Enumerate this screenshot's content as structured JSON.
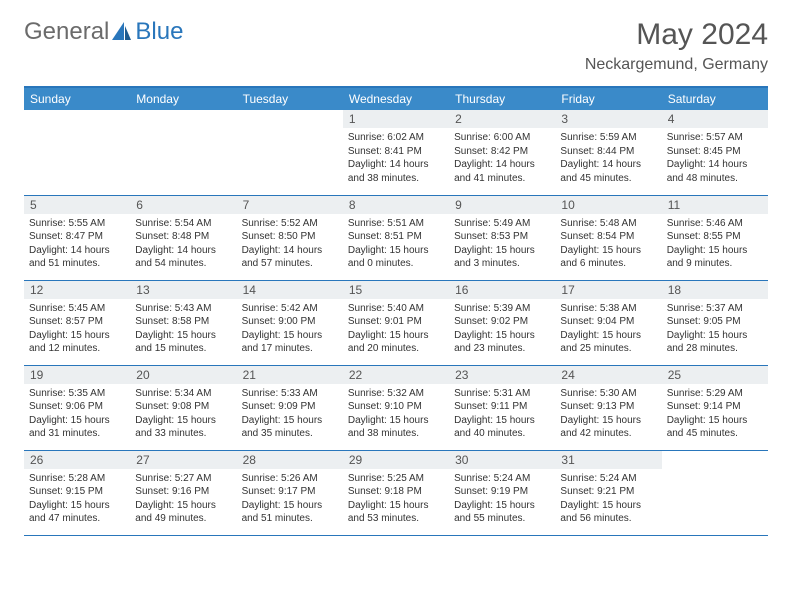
{
  "brand": {
    "name1": "General",
    "name2": "Blue"
  },
  "title": "May 2024",
  "subtitle": "Neckargemund, Germany",
  "colors": {
    "header_bg": "#3a8ac9",
    "border": "#2976bb",
    "daynum_bg": "#eceff1",
    "text": "#333333",
    "title_text": "#555555"
  },
  "weekdays": [
    "Sunday",
    "Monday",
    "Tuesday",
    "Wednesday",
    "Thursday",
    "Friday",
    "Saturday"
  ],
  "weeks": [
    [
      null,
      null,
      null,
      {
        "n": "1",
        "sr": "6:02 AM",
        "ss": "8:41 PM",
        "dh": "14",
        "dm": "38"
      },
      {
        "n": "2",
        "sr": "6:00 AM",
        "ss": "8:42 PM",
        "dh": "14",
        "dm": "41"
      },
      {
        "n": "3",
        "sr": "5:59 AM",
        "ss": "8:44 PM",
        "dh": "14",
        "dm": "45"
      },
      {
        "n": "4",
        "sr": "5:57 AM",
        "ss": "8:45 PM",
        "dh": "14",
        "dm": "48"
      }
    ],
    [
      {
        "n": "5",
        "sr": "5:55 AM",
        "ss": "8:47 PM",
        "dh": "14",
        "dm": "51"
      },
      {
        "n": "6",
        "sr": "5:54 AM",
        "ss": "8:48 PM",
        "dh": "14",
        "dm": "54"
      },
      {
        "n": "7",
        "sr": "5:52 AM",
        "ss": "8:50 PM",
        "dh": "14",
        "dm": "57"
      },
      {
        "n": "8",
        "sr": "5:51 AM",
        "ss": "8:51 PM",
        "dh": "15",
        "dm": "0"
      },
      {
        "n": "9",
        "sr": "5:49 AM",
        "ss": "8:53 PM",
        "dh": "15",
        "dm": "3"
      },
      {
        "n": "10",
        "sr": "5:48 AM",
        "ss": "8:54 PM",
        "dh": "15",
        "dm": "6"
      },
      {
        "n": "11",
        "sr": "5:46 AM",
        "ss": "8:55 PM",
        "dh": "15",
        "dm": "9"
      }
    ],
    [
      {
        "n": "12",
        "sr": "5:45 AM",
        "ss": "8:57 PM",
        "dh": "15",
        "dm": "12"
      },
      {
        "n": "13",
        "sr": "5:43 AM",
        "ss": "8:58 PM",
        "dh": "15",
        "dm": "15"
      },
      {
        "n": "14",
        "sr": "5:42 AM",
        "ss": "9:00 PM",
        "dh": "15",
        "dm": "17"
      },
      {
        "n": "15",
        "sr": "5:40 AM",
        "ss": "9:01 PM",
        "dh": "15",
        "dm": "20"
      },
      {
        "n": "16",
        "sr": "5:39 AM",
        "ss": "9:02 PM",
        "dh": "15",
        "dm": "23"
      },
      {
        "n": "17",
        "sr": "5:38 AM",
        "ss": "9:04 PM",
        "dh": "15",
        "dm": "25"
      },
      {
        "n": "18",
        "sr": "5:37 AM",
        "ss": "9:05 PM",
        "dh": "15",
        "dm": "28"
      }
    ],
    [
      {
        "n": "19",
        "sr": "5:35 AM",
        "ss": "9:06 PM",
        "dh": "15",
        "dm": "31"
      },
      {
        "n": "20",
        "sr": "5:34 AM",
        "ss": "9:08 PM",
        "dh": "15",
        "dm": "33"
      },
      {
        "n": "21",
        "sr": "5:33 AM",
        "ss": "9:09 PM",
        "dh": "15",
        "dm": "35"
      },
      {
        "n": "22",
        "sr": "5:32 AM",
        "ss": "9:10 PM",
        "dh": "15",
        "dm": "38"
      },
      {
        "n": "23",
        "sr": "5:31 AM",
        "ss": "9:11 PM",
        "dh": "15",
        "dm": "40"
      },
      {
        "n": "24",
        "sr": "5:30 AM",
        "ss": "9:13 PM",
        "dh": "15",
        "dm": "42"
      },
      {
        "n": "25",
        "sr": "5:29 AM",
        "ss": "9:14 PM",
        "dh": "15",
        "dm": "45"
      }
    ],
    [
      {
        "n": "26",
        "sr": "5:28 AM",
        "ss": "9:15 PM",
        "dh": "15",
        "dm": "47"
      },
      {
        "n": "27",
        "sr": "5:27 AM",
        "ss": "9:16 PM",
        "dh": "15",
        "dm": "49"
      },
      {
        "n": "28",
        "sr": "5:26 AM",
        "ss": "9:17 PM",
        "dh": "15",
        "dm": "51"
      },
      {
        "n": "29",
        "sr": "5:25 AM",
        "ss": "9:18 PM",
        "dh": "15",
        "dm": "53"
      },
      {
        "n": "30",
        "sr": "5:24 AM",
        "ss": "9:19 PM",
        "dh": "15",
        "dm": "55"
      },
      {
        "n": "31",
        "sr": "5:24 AM",
        "ss": "9:21 PM",
        "dh": "15",
        "dm": "56"
      },
      null
    ]
  ],
  "labels": {
    "sunrise": "Sunrise:",
    "sunset": "Sunset:",
    "daylight": "Daylight:",
    "hours": "hours",
    "and": "and",
    "minutes": "minutes."
  }
}
